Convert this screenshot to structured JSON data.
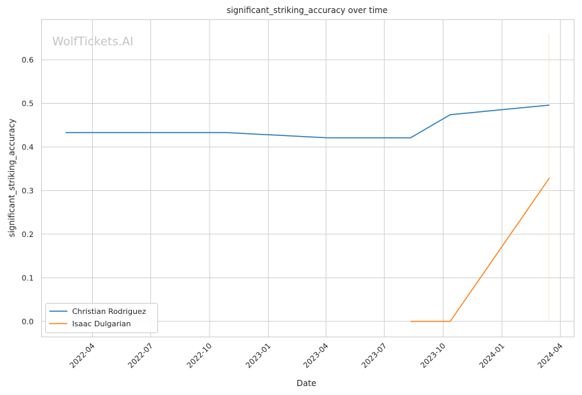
{
  "chart_data": {
    "type": "line",
    "title": "significant_striking_accuracy over time",
    "xlabel": "Date",
    "ylabel": "significant_striking_accuracy",
    "watermark": "WolfTickets.AI",
    "xlim": [
      "2022-01-11",
      "2024-04-22"
    ],
    "ylim": [
      -0.035,
      0.693
    ],
    "x_ticks": [
      "2022-04",
      "2022-07",
      "2022-10",
      "2023-01",
      "2023-04",
      "2023-07",
      "2023-10",
      "2024-01",
      "2024-04"
    ],
    "y_ticks": [
      "0.0",
      "0.1",
      "0.2",
      "0.3",
      "0.4",
      "0.5",
      "0.6"
    ],
    "grid": true,
    "legend_position": "lower-left",
    "series": [
      {
        "name": "Christian Rodriguez",
        "color": "#1f77b4",
        "x": [
          "2022-02-18",
          "2022-10-27",
          "2023-04-03",
          "2023-08-11",
          "2023-10-12",
          "2024-03-15"
        ],
        "y": [
          0.433,
          0.433,
          0.421,
          0.421,
          0.474,
          0.496
        ]
      },
      {
        "name": "Isaac Dulgarian",
        "color": "#ff7f0e",
        "x": [
          "2023-08-11",
          "2023-10-12",
          "2024-03-15"
        ],
        "y": [
          0.0,
          0.0,
          0.329
        ]
      }
    ]
  }
}
